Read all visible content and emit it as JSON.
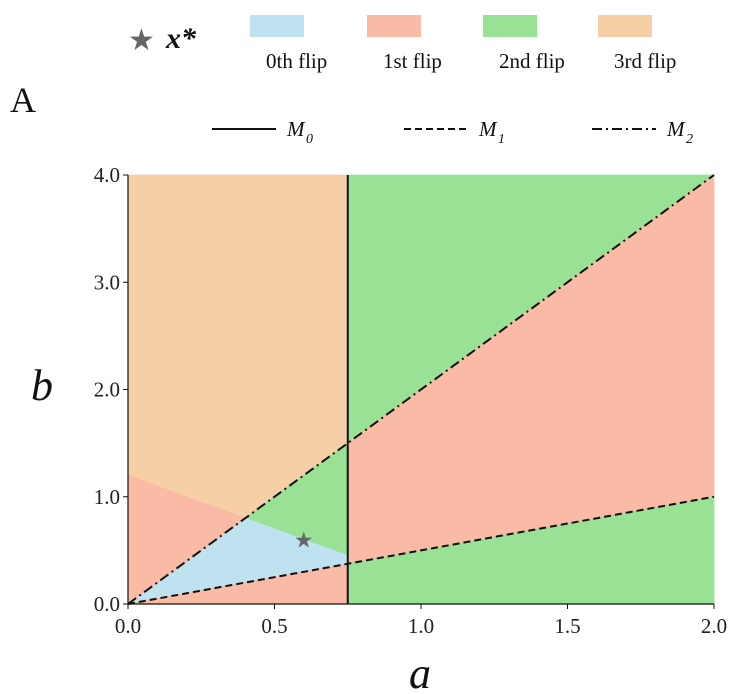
{
  "chart_data": {
    "type": "area",
    "panel_label": "A",
    "xlabel": "a",
    "ylabel": "b",
    "xlim": [
      0.0,
      2.0
    ],
    "ylim": [
      0.0,
      4.0
    ],
    "x_ticks": [
      "0.0",
      "0.5",
      "1.0",
      "1.5",
      "2.0"
    ],
    "y_ticks": [
      "0.0",
      "1.0",
      "2.0",
      "3.0",
      "4.0"
    ],
    "x_tick_values": [
      0.0,
      0.5,
      1.0,
      1.5,
      2.0
    ],
    "y_tick_values": [
      0.0,
      1.0,
      2.0,
      3.0,
      4.0
    ],
    "region_legend": [
      {
        "label": "0th flip",
        "color": "#bfe2f0"
      },
      {
        "label": "1st flip",
        "color": "#f9bba5"
      },
      {
        "label": "2nd flip",
        "color": "#98e195"
      },
      {
        "label": "3rd flip",
        "color": "#f6cfa6"
      }
    ],
    "point": {
      "label": "x*",
      "a": 0.6,
      "b": 0.6,
      "marker": "star",
      "color": "#666666"
    },
    "lines": [
      {
        "name": "M",
        "subscript": "0",
        "style": "solid",
        "points": [
          [
            0.75,
            0.0
          ],
          [
            0.75,
            4.0
          ]
        ]
      },
      {
        "name": "M",
        "subscript": "1",
        "style": "dashed",
        "points": [
          [
            0.0,
            0.0
          ],
          [
            2.0,
            1.0
          ]
        ]
      },
      {
        "name": "M",
        "subscript": "2",
        "style": "dashdot",
        "points": [
          [
            0.0,
            0.0
          ],
          [
            2.0,
            4.0
          ]
        ]
      }
    ],
    "regions": [
      {
        "flip": 3,
        "polygon": [
          [
            0,
            1.2
          ],
          [
            0,
            4
          ],
          [
            0.75,
            4
          ],
          [
            0.75,
            1.5
          ],
          [
            0.4,
            0.8
          ]
        ]
      },
      {
        "flip": 2,
        "polygon": [
          [
            0.4,
            0.8
          ],
          [
            0.75,
            1.5
          ],
          [
            0.75,
            0.45
          ]
        ]
      },
      {
        "flip": 0,
        "polygon": [
          [
            0,
            0
          ],
          [
            0.4,
            0.8
          ],
          [
            0.75,
            0.45
          ],
          [
            0.75,
            0.375
          ]
        ]
      },
      {
        "flip": 1,
        "polygon": [
          [
            0,
            0
          ],
          [
            0,
            1.2
          ],
          [
            0.4,
            0.8
          ]
        ]
      },
      {
        "flip": 1,
        "polygon": [
          [
            0,
            0
          ],
          [
            0.75,
            0.375
          ],
          [
            0.75,
            0
          ]
        ]
      },
      {
        "flip": 2,
        "polygon": [
          [
            0.75,
            1.5
          ],
          [
            0.75,
            4
          ],
          [
            2,
            4
          ]
        ]
      },
      {
        "flip": 1,
        "polygon": [
          [
            0.75,
            0.375
          ],
          [
            0.75,
            1.5
          ],
          [
            2,
            4
          ],
          [
            2,
            1
          ]
        ]
      },
      {
        "flip": 2,
        "polygon": [
          [
            0.75,
            0
          ],
          [
            0.75,
            0.375
          ],
          [
            2,
            1
          ],
          [
            2,
            0
          ]
        ]
      }
    ]
  }
}
